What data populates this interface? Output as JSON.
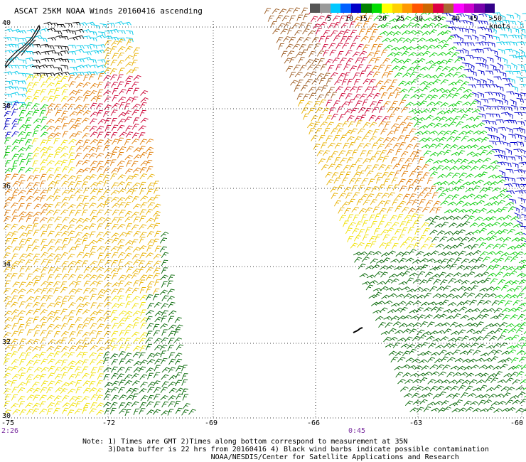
{
  "title": "ASCAT 25KM NOAA Winds 20160416 ascending",
  "legend": {
    "colors": [
      "#555555",
      "#9a9a9a",
      "#00c8ff",
      "#0060ff",
      "#0000c8",
      "#008000",
      "#00dd00",
      "#ffff00",
      "#ffd000",
      "#ff9900",
      "#ff5500",
      "#cc6600",
      "#dd0044",
      "#aa6633",
      "#ff00ff",
      "#cc00cc",
      "#7700aa",
      "#330088"
    ],
    "labels": [
      "5",
      "10",
      "15",
      "20",
      "25",
      "30",
      "35",
      "40",
      "45",
      ">50 knots"
    ]
  },
  "axes": {
    "lon_labels": [
      "-75",
      "-72",
      "-69",
      "-66",
      "-63",
      "-60"
    ],
    "lat_labels": [
      "40",
      "38",
      "36",
      "34",
      "32",
      "30"
    ]
  },
  "times": [
    "2:26",
    "0:45"
  ],
  "note": [
    "Note: 1) Times are GMT 2)Times along bottom correspond to measurement at 35N",
    "      3)Data buffer is 22 hrs from 20160416 4) Black wind barbs indicate possible contamination",
    "                              NOAA/NESDIS/Center for Satellite Applications and Research"
  ],
  "wind_color_key": {
    "black": "#000000",
    "cyan": "#00c8e8",
    "blue": "#0000cc",
    "dark_green": "#006400",
    "green": "#00cc00",
    "yellow": "#f0e000",
    "gold": "#e8b000",
    "orange": "#e07a00",
    "dark_orange": "#c85a00",
    "red": "#cc0033",
    "brown": "#9b5a20"
  }
}
